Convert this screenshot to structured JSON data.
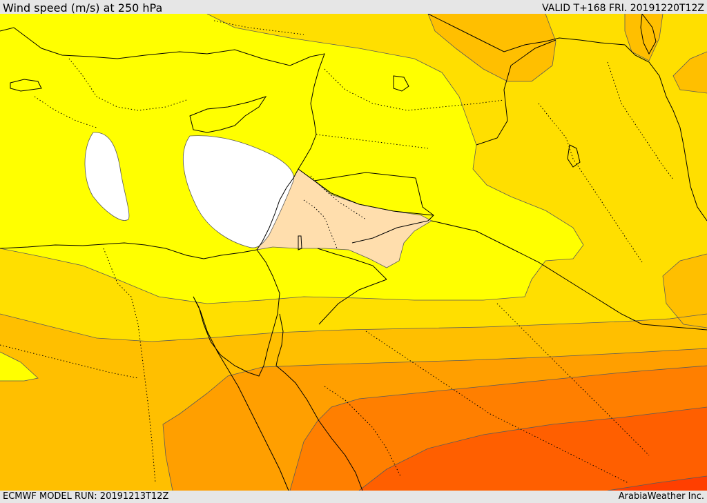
{
  "header": {
    "title": "Wind speed (m/s) at 250 hPa",
    "valid": "VALID T+168 FRI. 20191220T12Z"
  },
  "footer": {
    "model_run": "ECMWF MODEL RUN: 20191213T12Z",
    "credit": "ArabiaWeather Inc."
  },
  "map": {
    "variable": "wind speed",
    "level_hpa": 250,
    "colors": {
      "calm": "#ffffff",
      "band_peach": "#ffdead",
      "band_yellow": "#ffff00",
      "band_gold": "#ffdf00",
      "band_amber": "#ffbf00",
      "band_orange": "#ff9f00",
      "band_dark_orange": "#ff7f00",
      "band_red_orange": "#ff5f00",
      "band_red": "#ff3f00"
    }
  }
}
